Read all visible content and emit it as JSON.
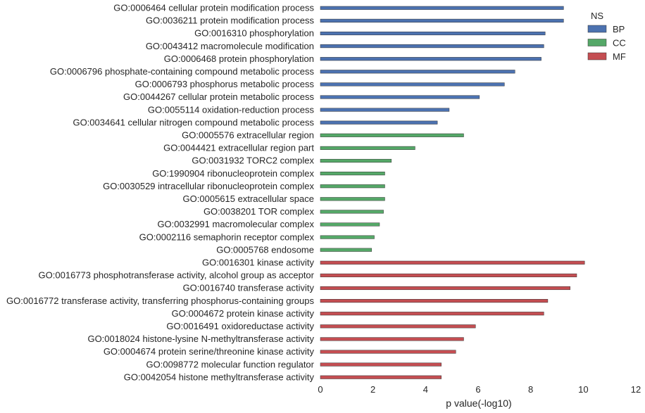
{
  "chart_data": {
    "type": "bar",
    "orientation": "horizontal",
    "xlabel": "p value(-log10)",
    "ylabel": "",
    "xlim": [
      0,
      12
    ],
    "xticks": [
      0,
      2,
      4,
      6,
      8,
      10,
      12
    ],
    "grid": false,
    "legend": {
      "title": "NS",
      "placement": "top-right",
      "entries": [
        {
          "name": "BP",
          "color": "#4c72b0"
        },
        {
          "name": "CC",
          "color": "#55a868"
        },
        {
          "name": "MF",
          "color": "#c44e52"
        }
      ]
    },
    "categories": [
      "GO:0006464 cellular protein modification process",
      "GO:0036211 protein modification process",
      "GO:0016310 phosphorylation",
      "GO:0043412 macromolecule modification",
      "GO:0006468 protein phosphorylation",
      "GO:0006796 phosphate-containing compound metabolic process",
      "GO:0006793 phosphorus metabolic process",
      "GO:0044267 cellular protein metabolic process",
      "GO:0055114 oxidation-reduction process",
      "GO:0034641 cellular nitrogen compound metabolic process",
      "GO:0005576 extracellular region",
      "GO:0044421 extracellular region part",
      "GO:0031932 TORC2 complex",
      "GO:1990904 ribonucleoprotein complex",
      "GO:0030529 intracellular ribonucleoprotein complex",
      "GO:0005615 extracellular space",
      "GO:0038201 TOR complex",
      "GO:0032991 macromolecular complex",
      "GO:0002116 semaphorin receptor complex",
      "GO:0005768 endosome",
      "GO:0016301 kinase activity",
      "GO:0016773 phosphotransferase activity, alcohol group as acceptor",
      "GO:0016740 transferase activity",
      "GO:0016772 transferase activity, transferring phosphorus-containing groups",
      "GO:0004672 protein kinase activity",
      "GO:0016491 oxidoreductase activity",
      "GO:0018024 histone-lysine N-methyltransferase activity",
      "GO:0004674 protein serine/threonine kinase activity",
      "GO:0098772 molecular function regulator",
      "GO:0042054 histone methyltransferase activity"
    ],
    "values": [
      9.25,
      9.25,
      8.55,
      8.5,
      8.4,
      7.4,
      7.0,
      6.05,
      4.9,
      4.45,
      5.45,
      3.6,
      2.7,
      2.45,
      2.45,
      2.45,
      2.4,
      2.25,
      2.05,
      1.95,
      10.05,
      9.75,
      9.5,
      8.65,
      8.5,
      5.9,
      5.45,
      5.15,
      4.6,
      4.6
    ],
    "groups": [
      "BP",
      "BP",
      "BP",
      "BP",
      "BP",
      "BP",
      "BP",
      "BP",
      "BP",
      "BP",
      "CC",
      "CC",
      "CC",
      "CC",
      "CC",
      "CC",
      "CC",
      "CC",
      "CC",
      "CC",
      "MF",
      "MF",
      "MF",
      "MF",
      "MF",
      "MF",
      "MF",
      "MF",
      "MF",
      "MF"
    ]
  }
}
